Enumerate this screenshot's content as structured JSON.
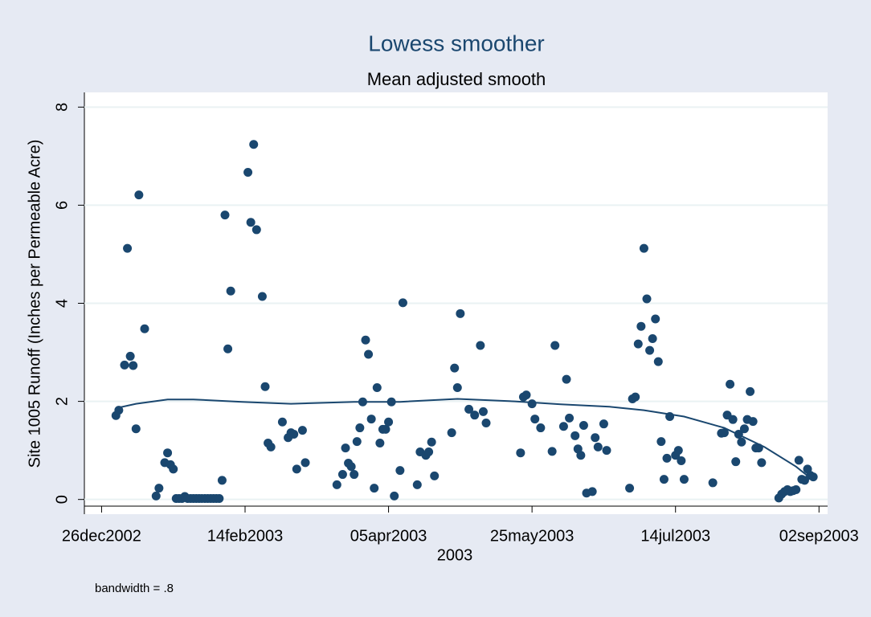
{
  "chart_data": {
    "type": "scatter",
    "title": "Lowess smoother",
    "subtitle": "Mean adjusted smooth",
    "y_label": "Site 1005 Runoff (Inches per Permeable Acre)",
    "x_label": "2003",
    "note": "bandwidth = .8",
    "color": "#1a476f",
    "grid": true,
    "x": [
      "2002-12-31",
      "2003-01-01",
      "2003-01-03",
      "2003-01-04",
      "2003-01-05",
      "2003-01-06",
      "2003-01-07",
      "2003-01-08",
      "2003-01-10",
      "2003-01-14",
      "2003-01-15",
      "2003-01-17",
      "2003-01-18",
      "2003-01-19",
      "2003-01-20",
      "2003-01-21",
      "2003-01-22",
      "2003-01-23",
      "2003-01-24",
      "2003-01-25",
      "2003-01-26",
      "2003-01-27",
      "2003-01-28",
      "2003-01-29",
      "2003-01-30",
      "2003-01-31",
      "2003-02-01",
      "2003-02-02",
      "2003-02-03",
      "2003-02-04",
      "2003-02-05",
      "2003-02-06",
      "2003-02-07",
      "2003-02-08",
      "2003-02-09",
      "2003-02-15",
      "2003-02-16",
      "2003-02-17",
      "2003-02-18",
      "2003-02-20",
      "2003-02-21",
      "2003-02-22",
      "2003-02-23",
      "2003-02-27",
      "2003-03-01",
      "2003-03-02",
      "2003-03-03",
      "2003-03-04",
      "2003-03-06",
      "2003-03-07",
      "2003-03-18",
      "2003-03-20",
      "2003-03-21",
      "2003-03-22",
      "2003-03-23",
      "2003-03-24",
      "2003-03-25",
      "2003-03-26",
      "2003-03-27",
      "2003-03-28",
      "2003-03-29",
      "2003-03-30",
      "2003-03-31",
      "2003-04-01",
      "2003-04-02",
      "2003-04-03",
      "2003-04-04",
      "2003-04-05",
      "2003-04-06",
      "2003-04-07",
      "2003-04-09",
      "2003-04-10",
      "2003-04-15",
      "2003-04-16",
      "2003-04-18",
      "2003-04-19",
      "2003-04-20",
      "2003-04-21",
      "2003-04-27",
      "2003-04-28",
      "2003-04-29",
      "2003-04-30",
      "2003-05-03",
      "2003-05-05",
      "2003-05-07",
      "2003-05-08",
      "2003-05-09",
      "2003-05-21",
      "2003-05-22",
      "2003-05-23",
      "2003-05-25",
      "2003-05-26",
      "2003-05-28",
      "2003-06-01",
      "2003-06-02",
      "2003-06-05",
      "2003-06-06",
      "2003-06-07",
      "2003-06-09",
      "2003-06-10",
      "2003-06-11",
      "2003-06-12",
      "2003-06-13",
      "2003-06-15",
      "2003-06-16",
      "2003-06-17",
      "2003-06-19",
      "2003-06-20",
      "2003-06-28",
      "2003-06-29",
      "2003-06-30",
      "2003-07-01",
      "2003-07-02",
      "2003-07-03",
      "2003-07-04",
      "2003-07-05",
      "2003-07-06",
      "2003-07-07",
      "2003-07-08",
      "2003-07-09",
      "2003-07-10",
      "2003-07-11",
      "2003-07-12",
      "2003-07-14",
      "2003-07-15",
      "2003-07-16",
      "2003-07-17",
      "2003-07-27",
      "2003-07-30",
      "2003-07-31",
      "2003-08-01",
      "2003-08-02",
      "2003-08-03",
      "2003-08-04",
      "2003-08-05",
      "2003-08-06",
      "2003-08-07",
      "2003-08-08",
      "2003-08-09",
      "2003-08-10",
      "2003-08-11",
      "2003-08-12",
      "2003-08-13",
      "2003-08-19",
      "2003-08-20",
      "2003-08-21",
      "2003-08-22",
      "2003-08-23",
      "2003-08-24",
      "2003-08-25",
      "2003-08-26",
      "2003-08-27",
      "2003-08-28",
      "2003-08-29",
      "2003-08-30",
      "2003-08-31"
    ],
    "values": [
      1.71,
      1.82,
      2.74,
      5.12,
      2.92,
      2.73,
      1.44,
      6.21,
      3.48,
      0.07,
      0.23,
      0.75,
      0.95,
      0.71,
      0.62,
      0.02,
      0.02,
      0.02,
      0.06,
      0.02,
      0.02,
      0.02,
      0.02,
      0.02,
      0.02,
      0.02,
      0.02,
      0.02,
      0.02,
      0.02,
      0.02,
      0.39,
      5.8,
      3.07,
      4.25,
      6.67,
      5.65,
      7.24,
      5.5,
      4.14,
      2.3,
      1.15,
      1.07,
      1.58,
      1.26,
      1.36,
      1.33,
      0.62,
      1.41,
      0.75,
      0.3,
      0.51,
      1.05,
      0.74,
      0.67,
      0.51,
      1.18,
      1.46,
      1.99,
      3.25,
      2.96,
      1.64,
      0.23,
      2.28,
      1.15,
      1.43,
      1.43,
      1.58,
      1.99,
      0.07,
      0.59,
      4.01,
      0.3,
      0.97,
      0.9,
      0.97,
      1.17,
      0.48,
      1.36,
      2.68,
      2.28,
      3.79,
      1.84,
      1.72,
      3.14,
      1.79,
      1.56,
      0.95,
      2.09,
      2.13,
      1.95,
      1.64,
      1.46,
      0.98,
      3.14,
      1.49,
      2.45,
      1.66,
      1.3,
      1.03,
      0.9,
      1.51,
      0.13,
      0.16,
      1.26,
      1.07,
      1.54,
      1.0,
      0.23,
      2.05,
      2.09,
      3.17,
      3.53,
      5.12,
      4.09,
      3.04,
      3.28,
      3.68,
      2.81,
      1.18,
      0.41,
      0.84,
      1.69,
      0.9,
      1.0,
      0.79,
      0.41,
      0.34,
      1.35,
      1.36,
      1.72,
      2.35,
      1.63,
      0.77,
      1.33,
      1.17,
      1.44,
      1.63,
      2.2,
      1.59,
      1.05,
      1.05,
      0.75,
      0.03,
      0.11,
      0.16,
      0.2,
      0.16,
      0.18,
      0.2,
      0.8,
      0.41,
      0.39,
      0.62,
      0.49,
      0.46
    ],
    "smooth": {
      "x": [
        "2002-12-31",
        "2003-01-07",
        "2003-01-18",
        "2003-01-27",
        "2003-02-13",
        "2003-03-02",
        "2003-03-24",
        "2003-04-09",
        "2003-04-29",
        "2003-05-19",
        "2003-06-04",
        "2003-06-21",
        "2003-07-03",
        "2003-07-17",
        "2003-07-31",
        "2003-08-14",
        "2003-08-25",
        "2003-08-31"
      ],
      "values": [
        1.86,
        1.95,
        2.04,
        2.04,
        1.99,
        1.95,
        1.99,
        1.99,
        2.05,
        2.0,
        1.94,
        1.89,
        1.82,
        1.69,
        1.46,
        1.07,
        0.67,
        0.39
      ]
    },
    "xlim": [
      "2002-12-20",
      "2003-09-05"
    ],
    "xticks": [
      {
        "value": "2002-12-26",
        "label": "26dec2002"
      },
      {
        "value": "2003-02-14",
        "label": "14feb2003"
      },
      {
        "value": "2003-04-05",
        "label": "05apr2003"
      },
      {
        "value": "2003-05-25",
        "label": "25may2003"
      },
      {
        "value": "2003-07-14",
        "label": "14jul2003"
      },
      {
        "value": "2003-09-02",
        "label": "02sep2003"
      }
    ],
    "ylim": [
      -0.3,
      8.3
    ],
    "yticks": [
      0,
      2,
      4,
      6,
      8
    ]
  }
}
